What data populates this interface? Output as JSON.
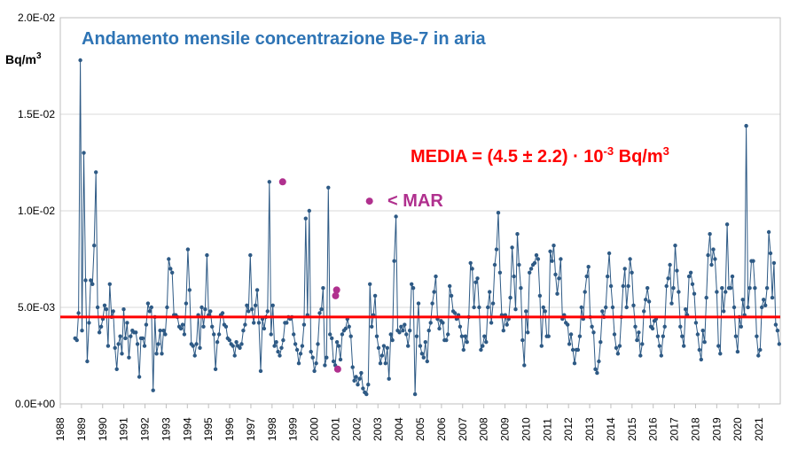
{
  "chart_data": {
    "type": "line",
    "title": "Andamento mensile concentrazione Be-7 in aria",
    "ylabel": "Bq/m³",
    "ylim": [
      0,
      0.02
    ],
    "yticks": [
      "0.0E+00",
      "5.0E-03",
      "1.0E-02",
      "1.5E-02",
      "2.0E-02"
    ],
    "ytick_values": [
      0,
      0.005,
      0.01,
      0.015,
      0.02
    ],
    "xlim": [
      1988,
      2022
    ],
    "xticks": [
      "1988",
      "1989",
      "1990",
      "1991",
      "1992",
      "1993",
      "1994",
      "1995",
      "1996",
      "1997",
      "1998",
      "1999",
      "2000",
      "2001",
      "2002",
      "2003",
      "2004",
      "2005",
      "2006",
      "2007",
      "2008",
      "2009",
      "2010",
      "2011",
      "2012",
      "2013",
      "2014",
      "2015",
      "2016",
      "2017",
      "2018",
      "2019",
      "2020",
      "2021"
    ],
    "grid": "horizontal",
    "mean_line": {
      "value": 0.0045,
      "color": "#FF0000"
    },
    "annotation_media": {
      "prefix": "MEDIA = (4.5 ± 2.2) · 10",
      "exp": "-3",
      "unit_base": " Bq/m",
      "unit_exp": "3"
    },
    "legend_mar": "< MAR",
    "series_color": "#2E5A85",
    "mar_color": "#B0308E",
    "series": [
      {
        "values": [
          0.0034,
          0.0033,
          0.0047,
          0.0178,
          0.0038,
          0.013,
          0.0064,
          0.0022,
          0.0042,
          0.0064,
          0.0062,
          0.0082,
          0.012,
          0.005,
          0.0037,
          0.004,
          0.0044,
          0.0051,
          0.0049,
          0.003,
          0.0062,
          0.0045,
          0.0048,
          0.0029,
          0.0018,
          0.0031,
          0.0035,
          0.0026,
          0.0049,
          0.0034,
          0.0042,
          0.0024,
          0.0035,
          0.0038,
          0.0037,
          0.0037,
          0.0031,
          0.0014,
          0.0034,
          0.0034,
          0.003,
          0.0041,
          0.0052,
          0.0048,
          0.005,
          0.0007,
          0.0045,
          0.0026,
          0.0031,
          0.0038,
          0.0026,
          0.0038,
          0.0036,
          0.005,
          0.0075,
          0.007,
          0.0068,
          0.0046,
          0.0046,
          0.0045,
          0.004,
          0.0039,
          0.0041,
          0.0036,
          0.0052,
          0.008,
          0.0059,
          0.0031,
          0.003,
          0.0025,
          0.0031,
          0.0046,
          0.0029,
          0.005,
          0.004,
          0.0049,
          0.0077,
          0.0046,
          0.0048,
          0.004,
          0.0036,
          0.0018,
          0.0032,
          0.0036,
          0.0046,
          0.0047,
          0.0041,
          0.004,
          0.0034,
          0.0033,
          0.0031,
          0.003,
          0.0025,
          0.0032,
          0.003,
          0.0029,
          0.0031,
          0.0038,
          0.0041,
          0.0051,
          0.0048,
          0.0077,
          0.0049,
          0.0042,
          0.0051,
          0.0059,
          0.0042,
          0.0017,
          0.0044,
          0.0039,
          0.0045,
          0.0048,
          0.0115,
          0.0036,
          0.0051,
          0.003,
          0.0032,
          0.0027,
          0.0025,
          0.0029,
          0.0033,
          0.0042,
          0.0042,
          0.0045,
          0.0044,
          0.0045,
          0.0036,
          0.0031,
          0.0028,
          0.0021,
          0.0026,
          0.003,
          0.0041,
          0.0096,
          0.0046,
          0.01,
          0.0027,
          0.0024,
          0.0017,
          0.0021,
          0.0031,
          0.0047,
          0.0049,
          0.006,
          0.002,
          0.0024,
          0.0112,
          0.0036,
          0.0034,
          0.0022,
          0.002,
          0.0032,
          0.003,
          0.0023,
          0.0036,
          0.0038,
          0.0039,
          0.0044,
          0.004,
          0.0035,
          0.0019,
          0.0012,
          0.0014,
          0.001,
          0.0013,
          0.0016,
          0.0008,
          0.0006,
          0.0005,
          0.001,
          0.0062,
          0.004,
          0.0046,
          0.0056,
          0.0035,
          0.0029,
          0.0021,
          0.0025,
          0.003,
          0.0021,
          0.0029,
          0.0013,
          0.0036,
          0.0033,
          0.0074,
          0.0097,
          0.0038,
          0.0037,
          0.004,
          0.0038,
          0.0041,
          0.0036,
          0.003,
          0.0038,
          0.0062,
          0.006,
          0.0005,
          0.0035,
          0.0052,
          0.003,
          0.0026,
          0.0024,
          0.0032,
          0.0022,
          0.0038,
          0.0042,
          0.0052,
          0.0058,
          0.0066,
          0.0044,
          0.0039,
          0.0043,
          0.0042,
          0.0033,
          0.0033,
          0.0036,
          0.0061,
          0.0056,
          0.0048,
          0.0047,
          0.0044,
          0.0046,
          0.004,
          0.0035,
          0.0028,
          0.0035,
          0.0032,
          0.0045,
          0.0073,
          0.007,
          0.005,
          0.0063,
          0.0065,
          0.005,
          0.0028,
          0.003,
          0.0035,
          0.0032,
          0.005,
          0.0058,
          0.0042,
          0.0052,
          0.0072,
          0.008,
          0.0099,
          0.0068,
          0.0046,
          0.0038,
          0.0046,
          0.0041,
          0.0044,
          0.0055,
          0.0081,
          0.0066,
          0.0049,
          0.0088,
          0.0072,
          0.006,
          0.0033,
          0.002,
          0.0048,
          0.0037,
          0.0068,
          0.007,
          0.0072,
          0.0073,
          0.0077,
          0.0075,
          0.0056,
          0.003,
          0.005,
          0.0048,
          0.0035,
          0.0035,
          0.0079,
          0.0074,
          0.0082,
          0.0067,
          0.0057,
          0.0065,
          0.0075,
          0.0044,
          0.0046,
          0.0042,
          0.0041,
          0.0031,
          0.0036,
          0.0028,
          0.0021,
          0.0028,
          0.0028,
          0.0035,
          0.005,
          0.0044,
          0.0058,
          0.0066,
          0.0071,
          0.0045,
          0.004,
          0.0037,
          0.0018,
          0.0016,
          0.0022,
          0.0032,
          0.0048,
          0.0045,
          0.005,
          0.0066,
          0.0078,
          0.0061,
          0.005,
          0.0036,
          0.0029,
          0.0026,
          0.003,
          0.0045,
          0.0061,
          0.007,
          0.005,
          0.0061,
          0.0075,
          0.0068,
          0.0051,
          0.004,
          0.0033,
          0.0037,
          0.0025,
          0.0031,
          0.0048,
          0.0054,
          0.006,
          0.0053,
          0.004,
          0.0039,
          0.0043,
          0.0044,
          0.0035,
          0.003,
          0.0025,
          0.0035,
          0.004,
          0.0061,
          0.0065,
          0.0072,
          0.0052,
          0.006,
          0.0082,
          0.0069,
          0.0058,
          0.004,
          0.0035,
          0.003,
          0.0049,
          0.0046,
          0.0066,
          0.0068,
          0.0062,
          0.0057,
          0.0042,
          0.0036,
          0.0028,
          0.0023,
          0.0038,
          0.0032,
          0.0055,
          0.0077,
          0.0088,
          0.0072,
          0.008,
          0.0075,
          0.0058,
          0.003,
          0.0026,
          0.006,
          0.0048,
          0.0058,
          0.0093,
          0.006,
          0.006,
          0.0066,
          0.005,
          0.0035,
          0.0027,
          0.0045,
          0.004,
          0.0054,
          0.0046,
          0.0144,
          0.005,
          0.006,
          0.0074,
          0.0074,
          0.006,
          0.0035,
          0.0025,
          0.0028,
          0.005,
          0.0054,
          0.0051,
          0.006,
          0.0089,
          0.0078,
          0.0055,
          0.0073,
          0.0041,
          0.0038,
          0.0031
        ]
      }
    ],
    "mar_points": [
      {
        "x": 1998.5,
        "y": 0.0115
      },
      {
        "x": 2001.0,
        "y": 0.0056
      },
      {
        "x": 2001.05,
        "y": 0.0059
      },
      {
        "x": 2001.1,
        "y": 0.0018
      }
    ],
    "legend_point": {
      "x": 2002.6,
      "y": 0.0105
    }
  }
}
